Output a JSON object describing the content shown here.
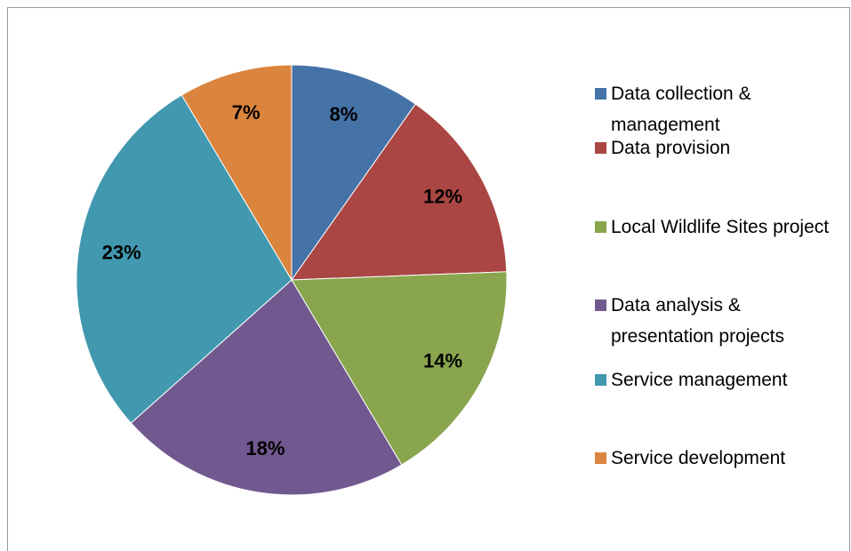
{
  "chart_data": {
    "type": "pie",
    "categories": [
      "Data collection & management",
      "Data provision",
      "Local Wildlife Sites project",
      "Data analysis & presentation projects",
      "Service management",
      "Service development"
    ],
    "values": [
      8,
      12,
      14,
      18,
      23,
      7
    ],
    "value_labels": [
      "8%",
      "12%",
      "14%",
      "18%",
      "23%",
      "7%"
    ],
    "colors": [
      "#4572a7",
      "#aa4643",
      "#89a54e",
      "#71588f",
      "#4198af",
      "#db843d"
    ],
    "legend": "right"
  }
}
